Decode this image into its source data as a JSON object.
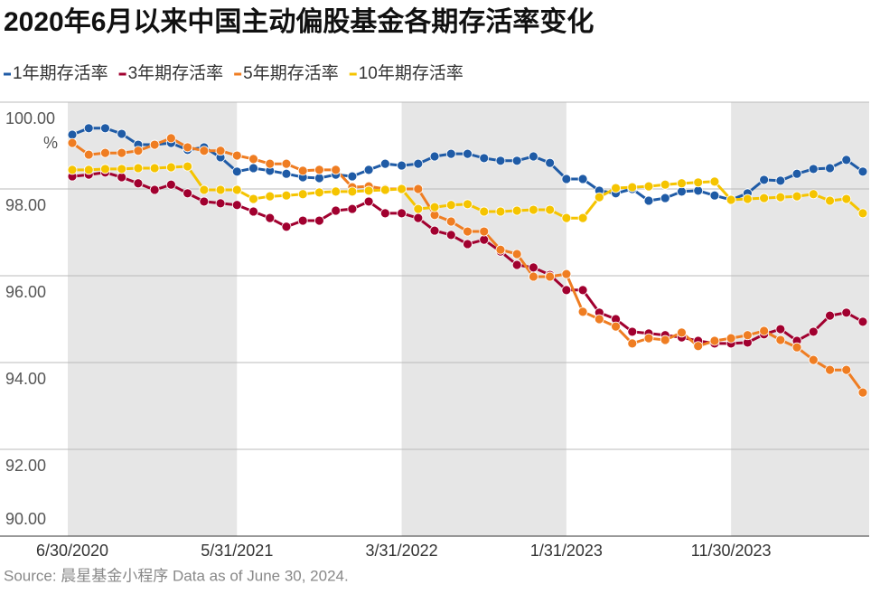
{
  "chart_data": {
    "type": "line",
    "title": "2020年6月以来中国主动偏股基金各期存活率变化",
    "y_unit": "%",
    "source": "Source: 晨星基金小程序 Data as of June 30, 2024.",
    "categories": [
      "6/30/2020",
      null,
      null,
      null,
      null,
      null,
      null,
      null,
      null,
      null,
      "5/31/2021",
      null,
      null,
      null,
      null,
      null,
      null,
      null,
      null,
      null,
      "3/31/2022",
      null,
      null,
      null,
      null,
      null,
      null,
      null,
      null,
      null,
      "1/31/2023",
      null,
      null,
      null,
      null,
      null,
      null,
      null,
      null,
      null,
      "11/30/2023",
      null,
      null,
      null,
      null,
      null,
      null,
      null,
      null
    ],
    "ylim": [
      90,
      100
    ],
    "yticks": [
      {
        "value": 90,
        "label": "90.00"
      },
      {
        "value": 92,
        "label": "92.00"
      },
      {
        "value": 94,
        "label": "94.00"
      },
      {
        "value": 96,
        "label": "96.00"
      },
      {
        "value": 98,
        "label": "98.00"
      },
      {
        "value": 100,
        "label": "100.00"
      }
    ],
    "grid": true,
    "series": [
      {
        "name": "1年期存活率",
        "color": "#1f5ba6",
        "values": [
          99.25,
          99.4,
          99.4,
          99.27,
          99.02,
          99.02,
          99.06,
          98.9,
          98.96,
          98.73,
          98.4,
          98.48,
          98.42,
          98.35,
          98.27,
          98.25,
          98.33,
          98.29,
          98.44,
          98.58,
          98.54,
          98.58,
          98.75,
          98.81,
          98.81,
          98.71,
          98.65,
          98.65,
          98.75,
          98.6,
          98.23,
          98.23,
          97.96,
          97.9,
          98.0,
          97.73,
          97.79,
          97.94,
          97.96,
          97.85,
          97.75,
          97.9,
          98.21,
          98.19,
          98.35,
          98.46,
          98.48,
          98.67,
          98.4
        ]
      },
      {
        "name": "3年期存活率",
        "color": "#a1002f",
        "values": [
          98.29,
          98.33,
          98.38,
          98.27,
          98.13,
          97.98,
          98.1,
          97.9,
          97.71,
          97.67,
          97.63,
          97.48,
          97.33,
          97.13,
          97.27,
          97.27,
          97.5,
          97.54,
          97.71,
          97.44,
          97.44,
          97.33,
          97.04,
          96.94,
          96.73,
          96.83,
          96.56,
          96.25,
          96.19,
          96.02,
          95.67,
          95.67,
          95.15,
          95.0,
          94.71,
          94.67,
          94.63,
          94.58,
          94.5,
          94.44,
          94.44,
          94.46,
          94.65,
          94.77,
          94.5,
          94.71,
          95.08,
          95.15,
          94.94
        ]
      },
      {
        "name": "5年期存活率",
        "color": "#ef7d22",
        "values": [
          99.06,
          98.79,
          98.83,
          98.83,
          98.88,
          99.02,
          99.17,
          98.96,
          98.88,
          98.88,
          98.77,
          98.69,
          98.58,
          98.58,
          98.42,
          98.44,
          98.44,
          98.04,
          98.06,
          98.0,
          98.0,
          98.0,
          97.4,
          97.25,
          97.02,
          97.02,
          96.6,
          96.5,
          95.98,
          95.98,
          96.04,
          95.17,
          95.0,
          94.83,
          94.44,
          94.56,
          94.52,
          94.69,
          94.38,
          94.5,
          94.56,
          94.63,
          94.73,
          94.52,
          94.35,
          94.06,
          93.83,
          93.83,
          93.31
        ]
      },
      {
        "name": "10年期存活率",
        "color": "#f5c400",
        "values": [
          98.44,
          98.44,
          98.46,
          98.46,
          98.48,
          98.48,
          98.5,
          98.52,
          97.98,
          97.98,
          97.98,
          97.77,
          97.83,
          97.85,
          97.88,
          97.92,
          97.94,
          97.94,
          97.96,
          97.98,
          98.0,
          97.54,
          97.58,
          97.63,
          97.65,
          97.48,
          97.48,
          97.5,
          97.52,
          97.52,
          97.33,
          97.33,
          97.81,
          98.02,
          98.04,
          98.06,
          98.1,
          98.13,
          98.15,
          98.17,
          97.75,
          97.77,
          97.79,
          97.81,
          97.83,
          97.88,
          97.73,
          97.77,
          97.44
        ]
      }
    ]
  }
}
